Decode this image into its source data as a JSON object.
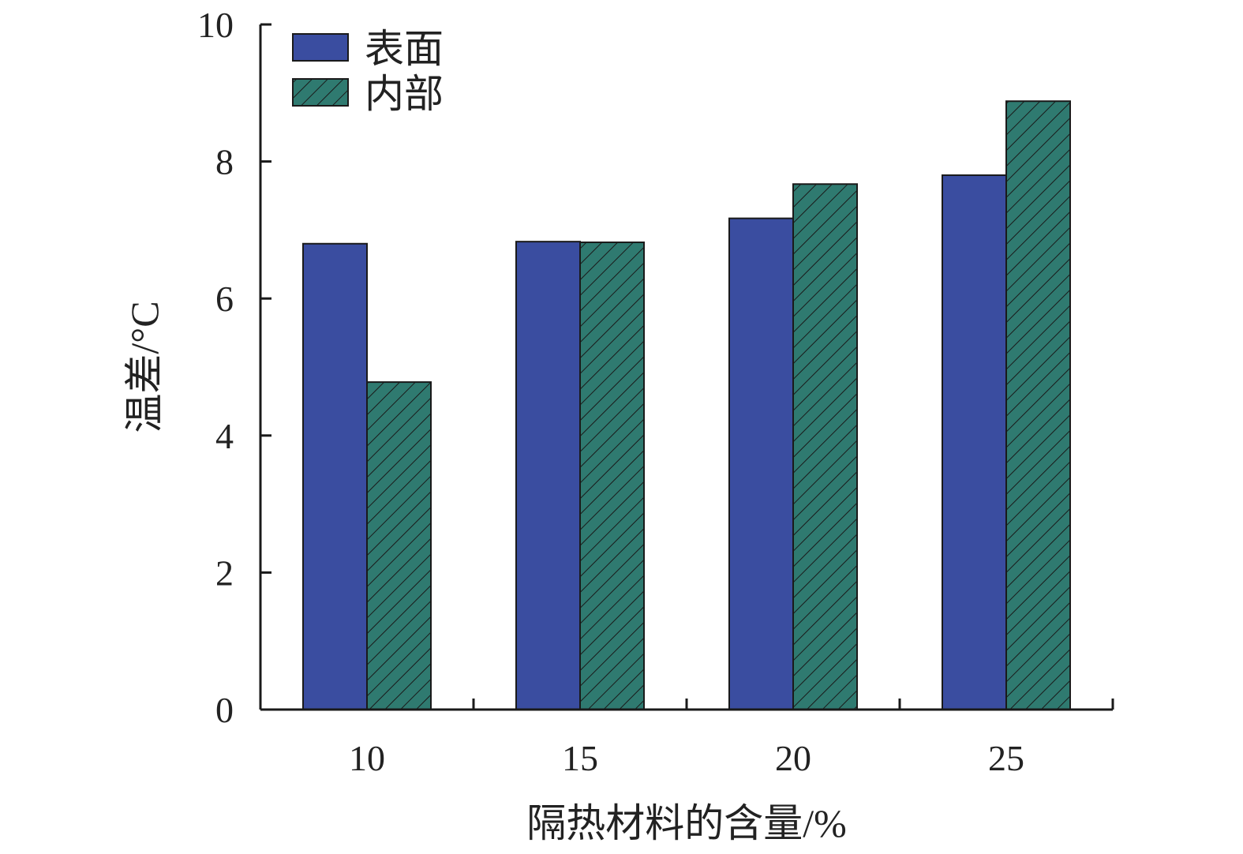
{
  "chart_data": {
    "type": "bar",
    "categories": [
      "10",
      "15",
      "20",
      "25"
    ],
    "series": [
      {
        "name": "表面",
        "values": [
          6.8,
          6.83,
          7.17,
          7.8
        ],
        "color": "#3a4da0",
        "pattern": "solid"
      },
      {
        "name": "内部",
        "values": [
          4.78,
          6.82,
          7.67,
          8.88
        ],
        "color": "#2f7a70",
        "pattern": "hatch"
      }
    ],
    "xlabel": "隔热材料的含量/%",
    "ylabel": "温差/°C",
    "ylim": [
      0,
      10
    ],
    "yticks": [
      0,
      2,
      4,
      6,
      8,
      10
    ],
    "grid": false,
    "legend": "top-left"
  }
}
